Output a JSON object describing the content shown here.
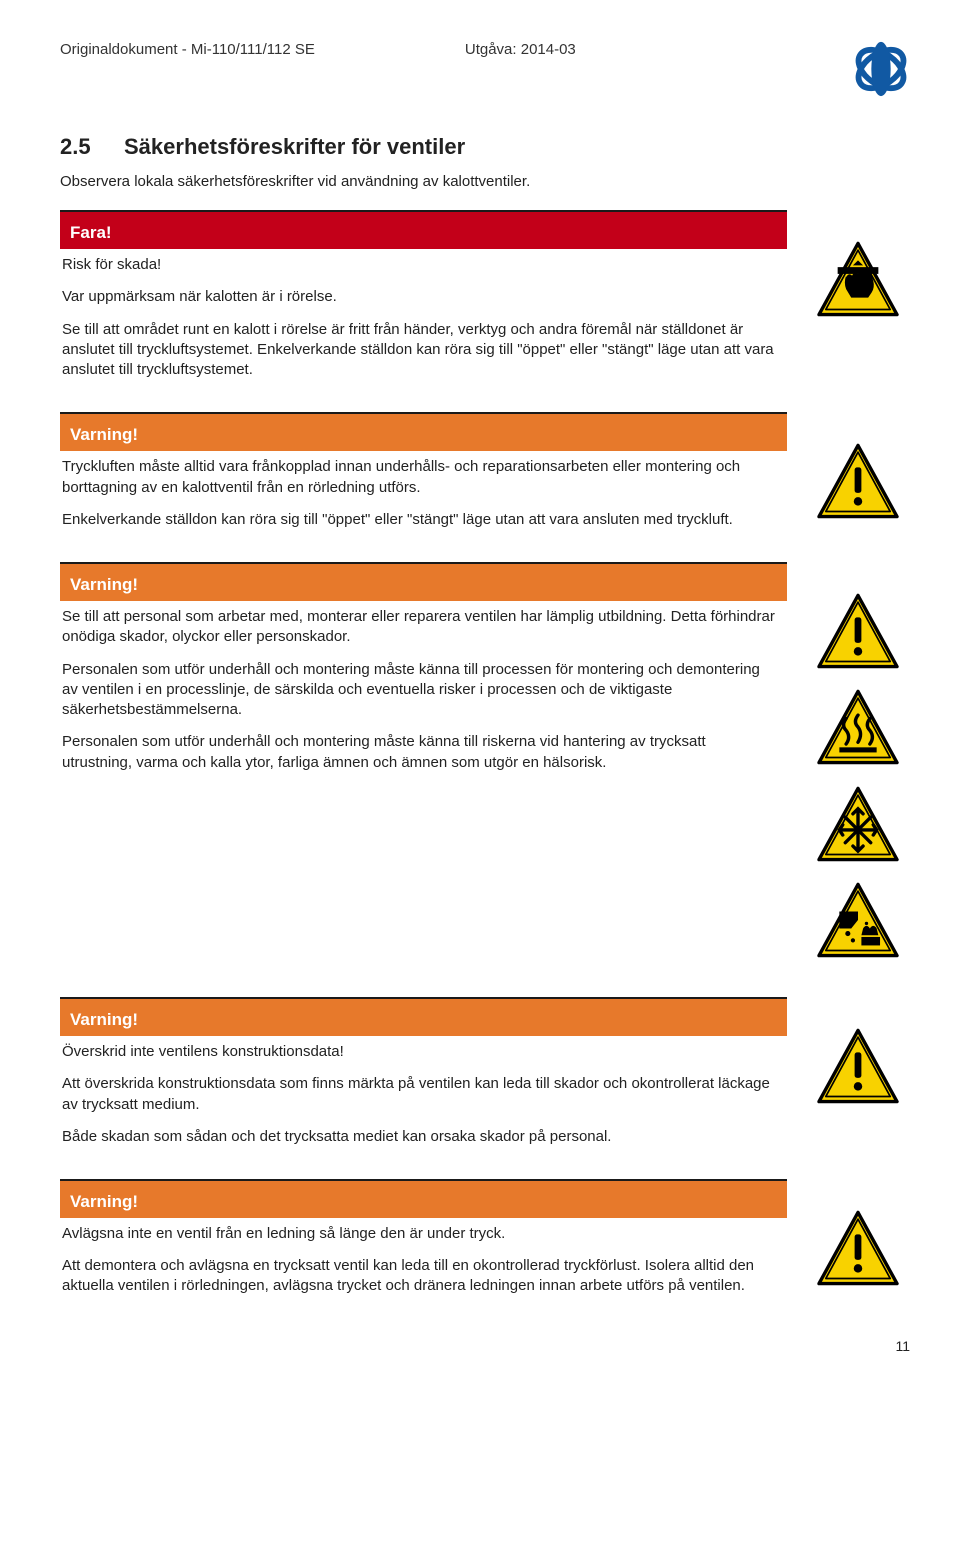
{
  "header": {
    "doc_code": "Originaldokument  -  Mi-110/111/112 SE",
    "edition": "Utgåva: 2014-03"
  },
  "section": {
    "number": "2.5",
    "title": "Säkerhetsföreskrifter för ventiler",
    "intro": "Observera lokala säkerhetsföreskrifter vid användning av kalottventiler."
  },
  "colors": {
    "danger_bg": "#c30019",
    "warning_bg": "#e7792b",
    "triangle_fill": "#f8d200",
    "triangle_border": "#000000",
    "rule": "#1a1a1a",
    "text": "#222222"
  },
  "labels": {
    "danger": "Fara!",
    "warning": "Varning!"
  },
  "boxes": [
    {
      "type": "danger",
      "icons": [
        "hand-crush"
      ],
      "paragraphs": [
        "Risk för skada!",
        "Var uppmärksam när kalotten är i rörelse.",
        "Se till att området runt en kalott i rörelse är fritt från händer, verktyg och andra föremål när ställdonet är anslutet till tryckluftsystemet. Enkelverkande ställdon kan röra sig till \"öppet\" eller \"stängt\" läge utan att vara anslutet till tryckluftsystemet."
      ]
    },
    {
      "type": "warning",
      "icons": [
        "exclamation"
      ],
      "paragraphs": [
        "Tryckluften måste alltid vara frånkopplad innan underhålls- och reparationsarbeten eller montering och borttagning av en kalottventil från en rörledning utförs.",
        "Enkelverkande ställdon kan röra sig till \"öppet\" eller \"stängt\" läge utan att vara ansluten med tryckluft."
      ]
    },
    {
      "type": "warning",
      "icons": [
        "exclamation",
        "hot-surface",
        "cold",
        "corrosive"
      ],
      "paragraphs": [
        "Se till att personal som arbetar med, monterar eller reparera ventilen har lämplig utbildning. Detta förhindrar onödiga skador, olyckor eller personskador.",
        "Personalen som utför underhåll och montering måste känna till processen för montering och demontering av ventilen i en processlinje, de särskilda och eventuella risker i processen och de viktigaste säkerhetsbestämmelserna.",
        "Personalen som utför underhåll och montering måste känna till riskerna vid hantering av trycksatt utrustning, varma och kalla ytor, farliga ämnen och ämnen som utgör en hälsorisk."
      ]
    },
    {
      "type": "warning",
      "icons": [
        "exclamation"
      ],
      "paragraphs": [
        "Överskrid inte ventilens konstruktionsdata!",
        "Att överskrida konstruktionsdata som finns märkta på ventilen kan leda till skador och okontrollerat läckage av trycksatt medium.",
        "Både skadan som sådan och det trycksatta mediet kan orsaka skador på personal."
      ]
    },
    {
      "type": "warning",
      "icons": [
        "exclamation"
      ],
      "paragraphs": [
        "Avlägsna inte en ventil från en ledning så länge den är under tryck.",
        "Att demontera och avlägsna en trycksatt ventil kan leda till en okontrollerad tryckförlust. Isolera alltid den aktuella ventilen i rörledningen, avlägsna trycket och dränera ledningen innan arbete utförs på ventilen."
      ]
    }
  ],
  "page_number": "11"
}
